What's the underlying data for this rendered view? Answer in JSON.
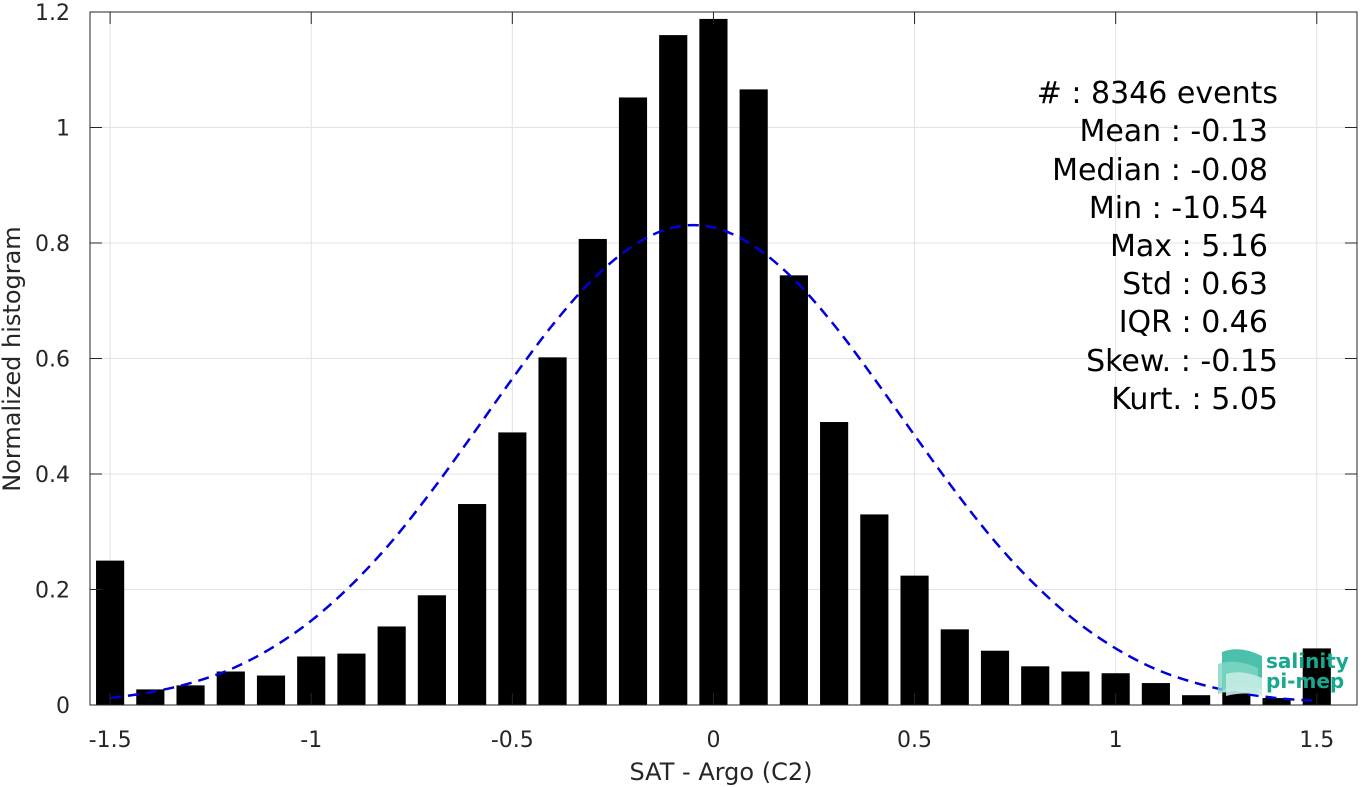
{
  "chart_data": {
    "type": "bar",
    "xlabel": "SAT - Argo (C2)",
    "ylabel": "Normalized histogram",
    "xlim": [
      -1.55,
      1.6
    ],
    "ylim": [
      0,
      1.2
    ],
    "x_ticks": [
      "-1.5",
      "-1",
      "-0.5",
      "0",
      "0.5",
      "1",
      "1.5"
    ],
    "x_tick_values": [
      -1.5,
      -1,
      -0.5,
      0,
      0.5,
      1,
      1.5
    ],
    "y_ticks": [
      "0",
      "0.2",
      "0.4",
      "0.6",
      "0.8",
      "1",
      "1.2"
    ],
    "y_tick_values": [
      0,
      0.2,
      0.4,
      0.6,
      0.8,
      1,
      1.2
    ],
    "grid": true,
    "bar_width": 0.07,
    "bar_color": "#000000",
    "bars": {
      "x": [
        -1.5,
        -1.4,
        -1.3,
        -1.2,
        -1.1,
        -1.0,
        -0.9,
        -0.8,
        -0.7,
        -0.6,
        -0.5,
        -0.4,
        -0.3,
        -0.2,
        -0.1,
        0.0,
        0.1,
        0.2,
        0.3,
        0.4,
        0.5,
        0.6,
        0.7,
        0.8,
        0.9,
        1.0,
        1.1,
        1.2,
        1.3,
        1.4,
        1.5
      ],
      "values": [
        0.25,
        0.027,
        0.034,
        0.058,
        0.051,
        0.084,
        0.089,
        0.136,
        0.19,
        0.348,
        0.472,
        0.602,
        0.807,
        1.052,
        1.16,
        1.188,
        1.066,
        0.744,
        0.49,
        0.33,
        0.224,
        0.131,
        0.094,
        0.067,
        0.058,
        0.055,
        0.038,
        0.017,
        0.022,
        0.012,
        0.098
      ]
    },
    "fit_curve": {
      "style": "dashed",
      "color": "#0000dd",
      "x": [
        -1.5,
        -1.4,
        -1.3,
        -1.2,
        -1.1,
        -1.0,
        -0.9,
        -0.8,
        -0.7,
        -0.6,
        -0.5,
        -0.4,
        -0.3,
        -0.2,
        -0.1,
        0.0,
        0.1,
        0.2,
        0.3,
        0.4,
        0.5,
        0.6,
        0.7,
        0.8,
        0.9,
        1.0,
        1.1,
        1.2,
        1.3,
        1.4,
        1.5
      ],
      "values": [
        0.012,
        0.022,
        0.038,
        0.062,
        0.098,
        0.146,
        0.208,
        0.283,
        0.371,
        0.467,
        0.565,
        0.658,
        0.737,
        0.795,
        0.827,
        0.827,
        0.795,
        0.737,
        0.658,
        0.565,
        0.467,
        0.371,
        0.283,
        0.208,
        0.146,
        0.098,
        0.062,
        0.038,
        0.022,
        0.012,
        0.007
      ]
    },
    "stats": [
      {
        "label": "#  : 8346 events"
      },
      {
        "label": "Mean : -0.13"
      },
      {
        "label": "Median : -0.08"
      },
      {
        "label": "Min : -10.54"
      },
      {
        "label": "Max : 5.16"
      },
      {
        "label": "Std : 0.63"
      },
      {
        "label": "IQR : 0.46"
      },
      {
        "label": "Skew. : -0.15"
      },
      {
        "label": "Kurt. : 5.05"
      }
    ]
  },
  "logo": {
    "line1": "salinity",
    "line2": "pi-mep",
    "color": "#19a88f"
  }
}
